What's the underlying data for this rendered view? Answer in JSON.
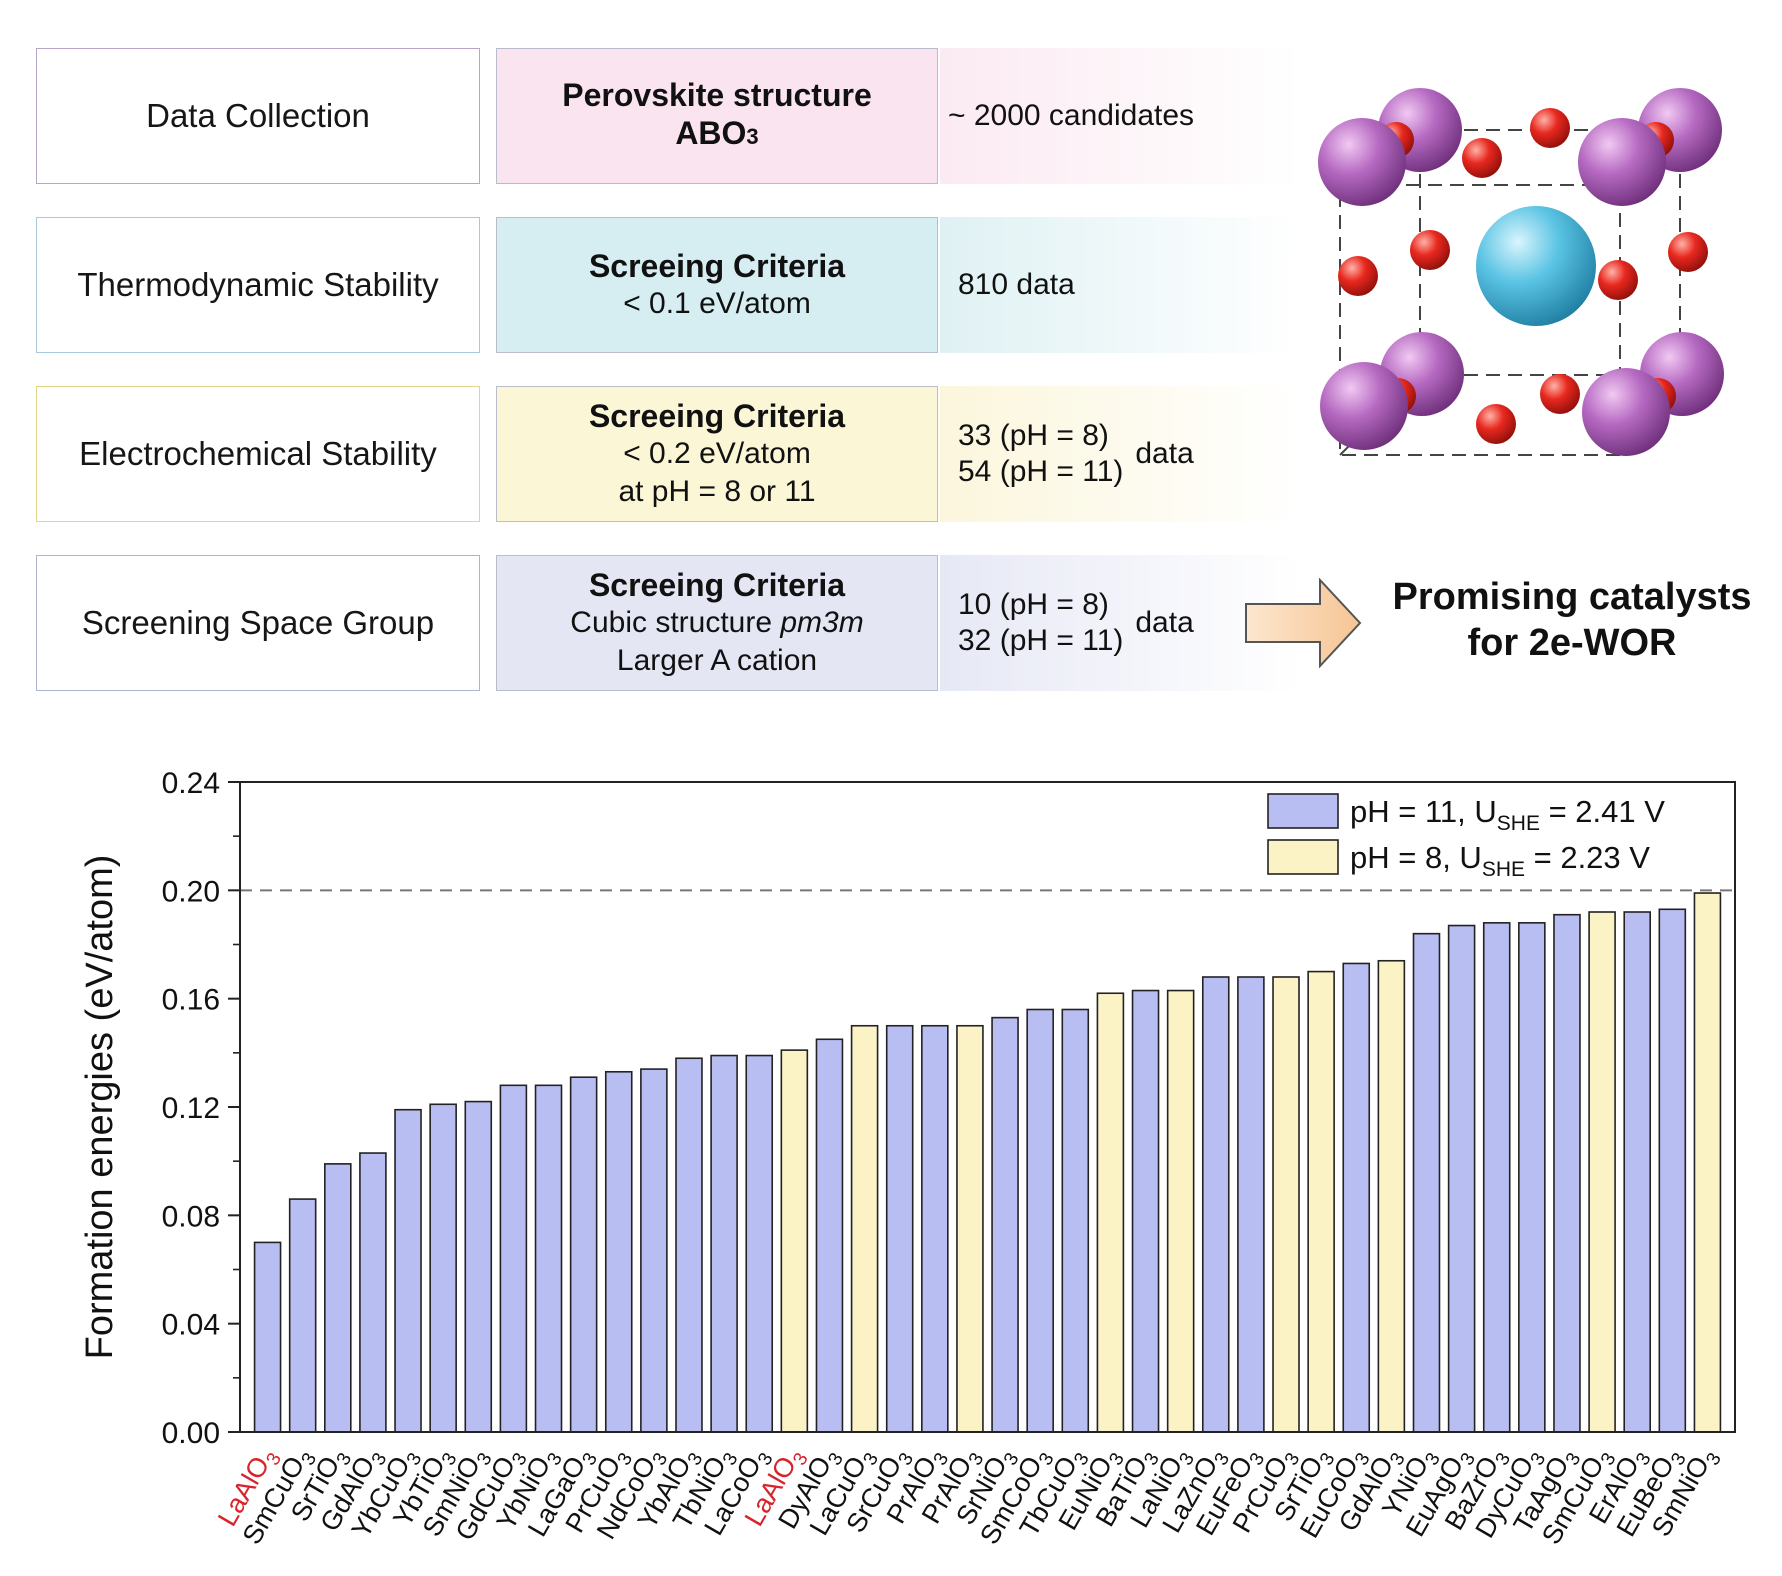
{
  "workflow": {
    "rows": [
      {
        "stage": "Data Collection",
        "criteria_title": "Perovskite structure",
        "criteria_formula": "ABO",
        "criteria_formula_sub": "3",
        "result": "~ 2000 candidates"
      },
      {
        "stage": "Thermodynamic Stability",
        "criteria_title": "Screeing Criteria",
        "criteria_line1": "< 0.1 eV/atom",
        "result": "810 data"
      },
      {
        "stage": "Electrochemical Stability",
        "criteria_title": "Screeing Criteria",
        "criteria_line1": "< 0.2 eV/atom",
        "criteria_line2": "at pH = 8 or 11",
        "result_line1": "33 (pH = 8)",
        "result_line2": "54 (pH = 11)",
        "result_suffix": "data"
      },
      {
        "stage": "Screening Space Group",
        "criteria_title": "Screeing Criteria",
        "criteria_line1_prefix": "Cubic structure ",
        "criteria_line1_italic": "pm3m",
        "criteria_line2": "Larger A cation",
        "result_line1": "10 (pH = 8)",
        "result_line2": "32 (pH = 11)",
        "result_suffix": "data"
      }
    ],
    "outcome_line1": "Promising catalysts",
    "outcome_line2": "for 2e-WOR"
  },
  "colors": {
    "ph11_bar": "#b9bef2",
    "ph8_bar": "#fbf2c6",
    "highlight_label": "#d8232a",
    "a_site_atom": "#b66ac2",
    "b_site_atom": "#5bc4e4",
    "oxygen_atom": "#e8281f"
  },
  "chart_data": {
    "type": "bar",
    "ylabel": "Formation energies (eV/atom)",
    "ylim": [
      0,
      0.24
    ],
    "yticks": [
      "0.00",
      "0.04",
      "0.08",
      "0.12",
      "0.16",
      "0.20",
      "0.24"
    ],
    "threshold": 0.2,
    "legend_position": "top-right",
    "series": [
      {
        "name_prefix": "pH = 11, U",
        "name_sub": "SHE",
        "name_suffix": " = 2.41 V",
        "key": "pH11"
      },
      {
        "name_prefix": "pH = 8, U",
        "name_sub": "SHE",
        "name_suffix": " = 2.23 V",
        "key": "pH8"
      }
    ],
    "bars": [
      {
        "base": "LaAlO",
        "sub": "3",
        "value": 0.07,
        "series": "pH11",
        "highlight": true
      },
      {
        "base": "SmCuO",
        "sub": "3",
        "value": 0.086,
        "series": "pH11"
      },
      {
        "base": "SrTiO",
        "sub": "3",
        "value": 0.099,
        "series": "pH11"
      },
      {
        "base": "GdAlO",
        "sub": "3",
        "value": 0.103,
        "series": "pH11"
      },
      {
        "base": "YbCuO",
        "sub": "3",
        "value": 0.119,
        "series": "pH11"
      },
      {
        "base": "YbTiO",
        "sub": "3",
        "value": 0.121,
        "series": "pH11"
      },
      {
        "base": "SmNiO",
        "sub": "3",
        "value": 0.122,
        "series": "pH11"
      },
      {
        "base": "GdCuO",
        "sub": "3",
        "value": 0.128,
        "series": "pH11"
      },
      {
        "base": "YbNiO",
        "sub": "3",
        "value": 0.128,
        "series": "pH11"
      },
      {
        "base": "LaGaO",
        "sub": "3",
        "value": 0.131,
        "series": "pH11"
      },
      {
        "base": "PrCuO",
        "sub": "3",
        "value": 0.133,
        "series": "pH11"
      },
      {
        "base": "NdCoO",
        "sub": "3",
        "value": 0.134,
        "series": "pH11"
      },
      {
        "base": "YbAlO",
        "sub": "3",
        "value": 0.138,
        "series": "pH11"
      },
      {
        "base": "TbNiO",
        "sub": "3",
        "value": 0.139,
        "series": "pH11"
      },
      {
        "base": "LaCoO",
        "sub": "3",
        "value": 0.139,
        "series": "pH11"
      },
      {
        "base": "LaAlO",
        "sub": "3",
        "value": 0.141,
        "series": "pH8",
        "highlight": true
      },
      {
        "base": "DyAlO",
        "sub": "3",
        "value": 0.145,
        "series": "pH11"
      },
      {
        "base": "LaCuO",
        "sub": "3",
        "value": 0.15,
        "series": "pH8"
      },
      {
        "base": "SrCuO",
        "sub": "3",
        "value": 0.15,
        "series": "pH11"
      },
      {
        "base": "PrAlO",
        "sub": "3",
        "value": 0.15,
        "series": "pH11"
      },
      {
        "base": "PrAlO",
        "sub": "3",
        "value": 0.15,
        "series": "pH8"
      },
      {
        "base": "SrNiO",
        "sub": "3",
        "value": 0.153,
        "series": "pH11"
      },
      {
        "base": "SmCoO",
        "sub": "3",
        "value": 0.156,
        "series": "pH11"
      },
      {
        "base": "TbCuO",
        "sub": "3",
        "value": 0.156,
        "series": "pH11"
      },
      {
        "base": "EuNiO",
        "sub": "3",
        "value": 0.162,
        "series": "pH8"
      },
      {
        "base": "BaTiO",
        "sub": "3",
        "value": 0.163,
        "series": "pH11"
      },
      {
        "base": "LaNiO",
        "sub": "3",
        "value": 0.163,
        "series": "pH8"
      },
      {
        "base": "LaZnO",
        "sub": "3",
        "value": 0.168,
        "series": "pH11"
      },
      {
        "base": "EuFeO",
        "sub": "3",
        "value": 0.168,
        "series": "pH11"
      },
      {
        "base": "PrCuO",
        "sub": "3",
        "value": 0.168,
        "series": "pH8"
      },
      {
        "base": "SrTiO",
        "sub": "3",
        "value": 0.17,
        "series": "pH8"
      },
      {
        "base": "EuCoO",
        "sub": "3",
        "value": 0.173,
        "series": "pH11"
      },
      {
        "base": "GdAlO",
        "sub": "3",
        "value": 0.174,
        "series": "pH8"
      },
      {
        "base": "YNiO",
        "sub": "3",
        "value": 0.184,
        "series": "pH11"
      },
      {
        "base": "EuAgO",
        "sub": "3",
        "value": 0.187,
        "series": "pH11"
      },
      {
        "base": "BaZrO",
        "sub": "3",
        "value": 0.188,
        "series": "pH11"
      },
      {
        "base": "DyCuO",
        "sub": "3",
        "value": 0.188,
        "series": "pH11"
      },
      {
        "base": "TaAgO",
        "sub": "3",
        "value": 0.191,
        "series": "pH11"
      },
      {
        "base": "SmCuO",
        "sub": "3",
        "value": 0.192,
        "series": "pH8"
      },
      {
        "base": "ErAlO",
        "sub": "3",
        "value": 0.192,
        "series": "pH11"
      },
      {
        "base": "EuBeO",
        "sub": "3",
        "value": 0.193,
        "series": "pH11"
      },
      {
        "base": "SmNiO",
        "sub": "3",
        "value": 0.199,
        "series": "pH8"
      }
    ]
  }
}
